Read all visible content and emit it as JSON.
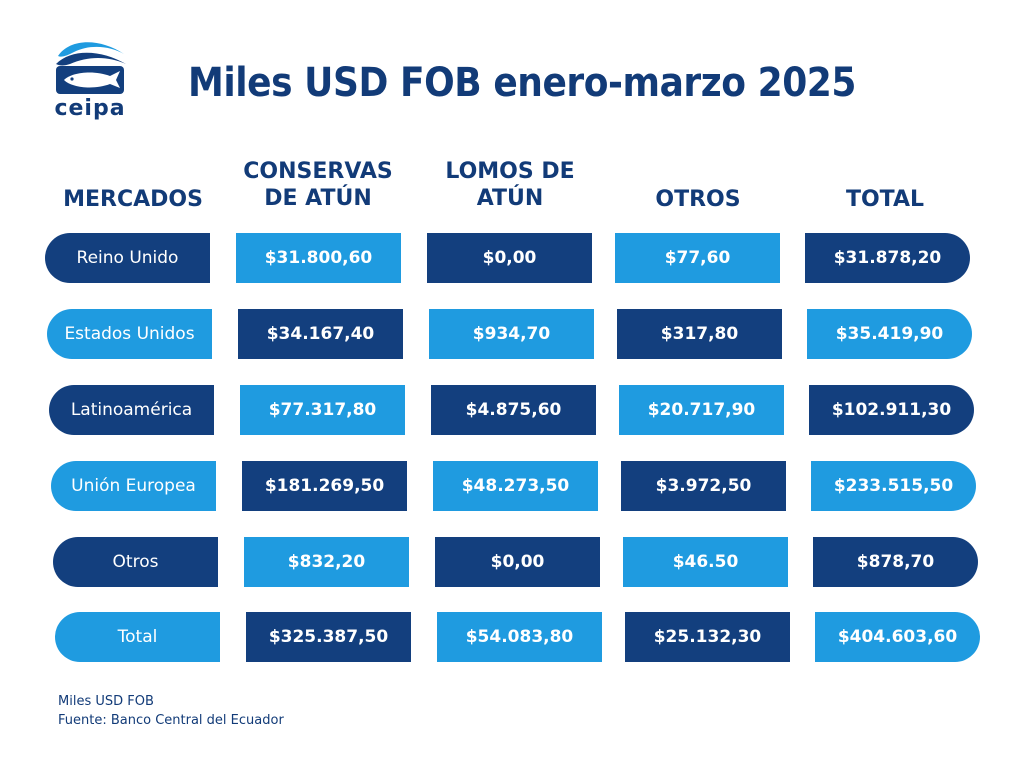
{
  "logo": {
    "text": "ceipa",
    "icon": "fish-wave-logo-icon"
  },
  "title": "Miles USD FOB enero-marzo 2025",
  "colors": {
    "dark": "#133f7e",
    "light": "#1f9be0",
    "text": "#123b78"
  },
  "chart_data": {
    "type": "table",
    "columns": [
      "MERCADOS",
      "CONSERVAS\nDE ATÚN",
      "LOMOS DE\nATÚN",
      "OTROS",
      "TOTAL"
    ],
    "rows": [
      [
        "Reino Unido",
        "$31.800,60",
        "$0,00",
        "$77,60",
        "$31.878,20"
      ],
      [
        "Estados Unidos",
        "$34.167,40",
        "$934,70",
        "$317,80",
        "$35.419,90"
      ],
      [
        "Latinoamérica",
        "$77.317,80",
        "$4.875,60",
        "$20.717,90",
        "$102.911,30"
      ],
      [
        "Unión Europea",
        "$181.269,50",
        "$48.273,50",
        "$3.972,50",
        "$233.515,50"
      ],
      [
        "Otros",
        "$832,20",
        "$0,00",
        "$46.50",
        "$878,70"
      ],
      [
        "Total",
        "$325.387,50",
        "$54.083,80",
        "$25.132,30",
        "$404.603,60"
      ]
    ]
  },
  "footer": {
    "unit": "Miles USD FOB",
    "source": "Fuente: Banco Central del Ecuador"
  }
}
